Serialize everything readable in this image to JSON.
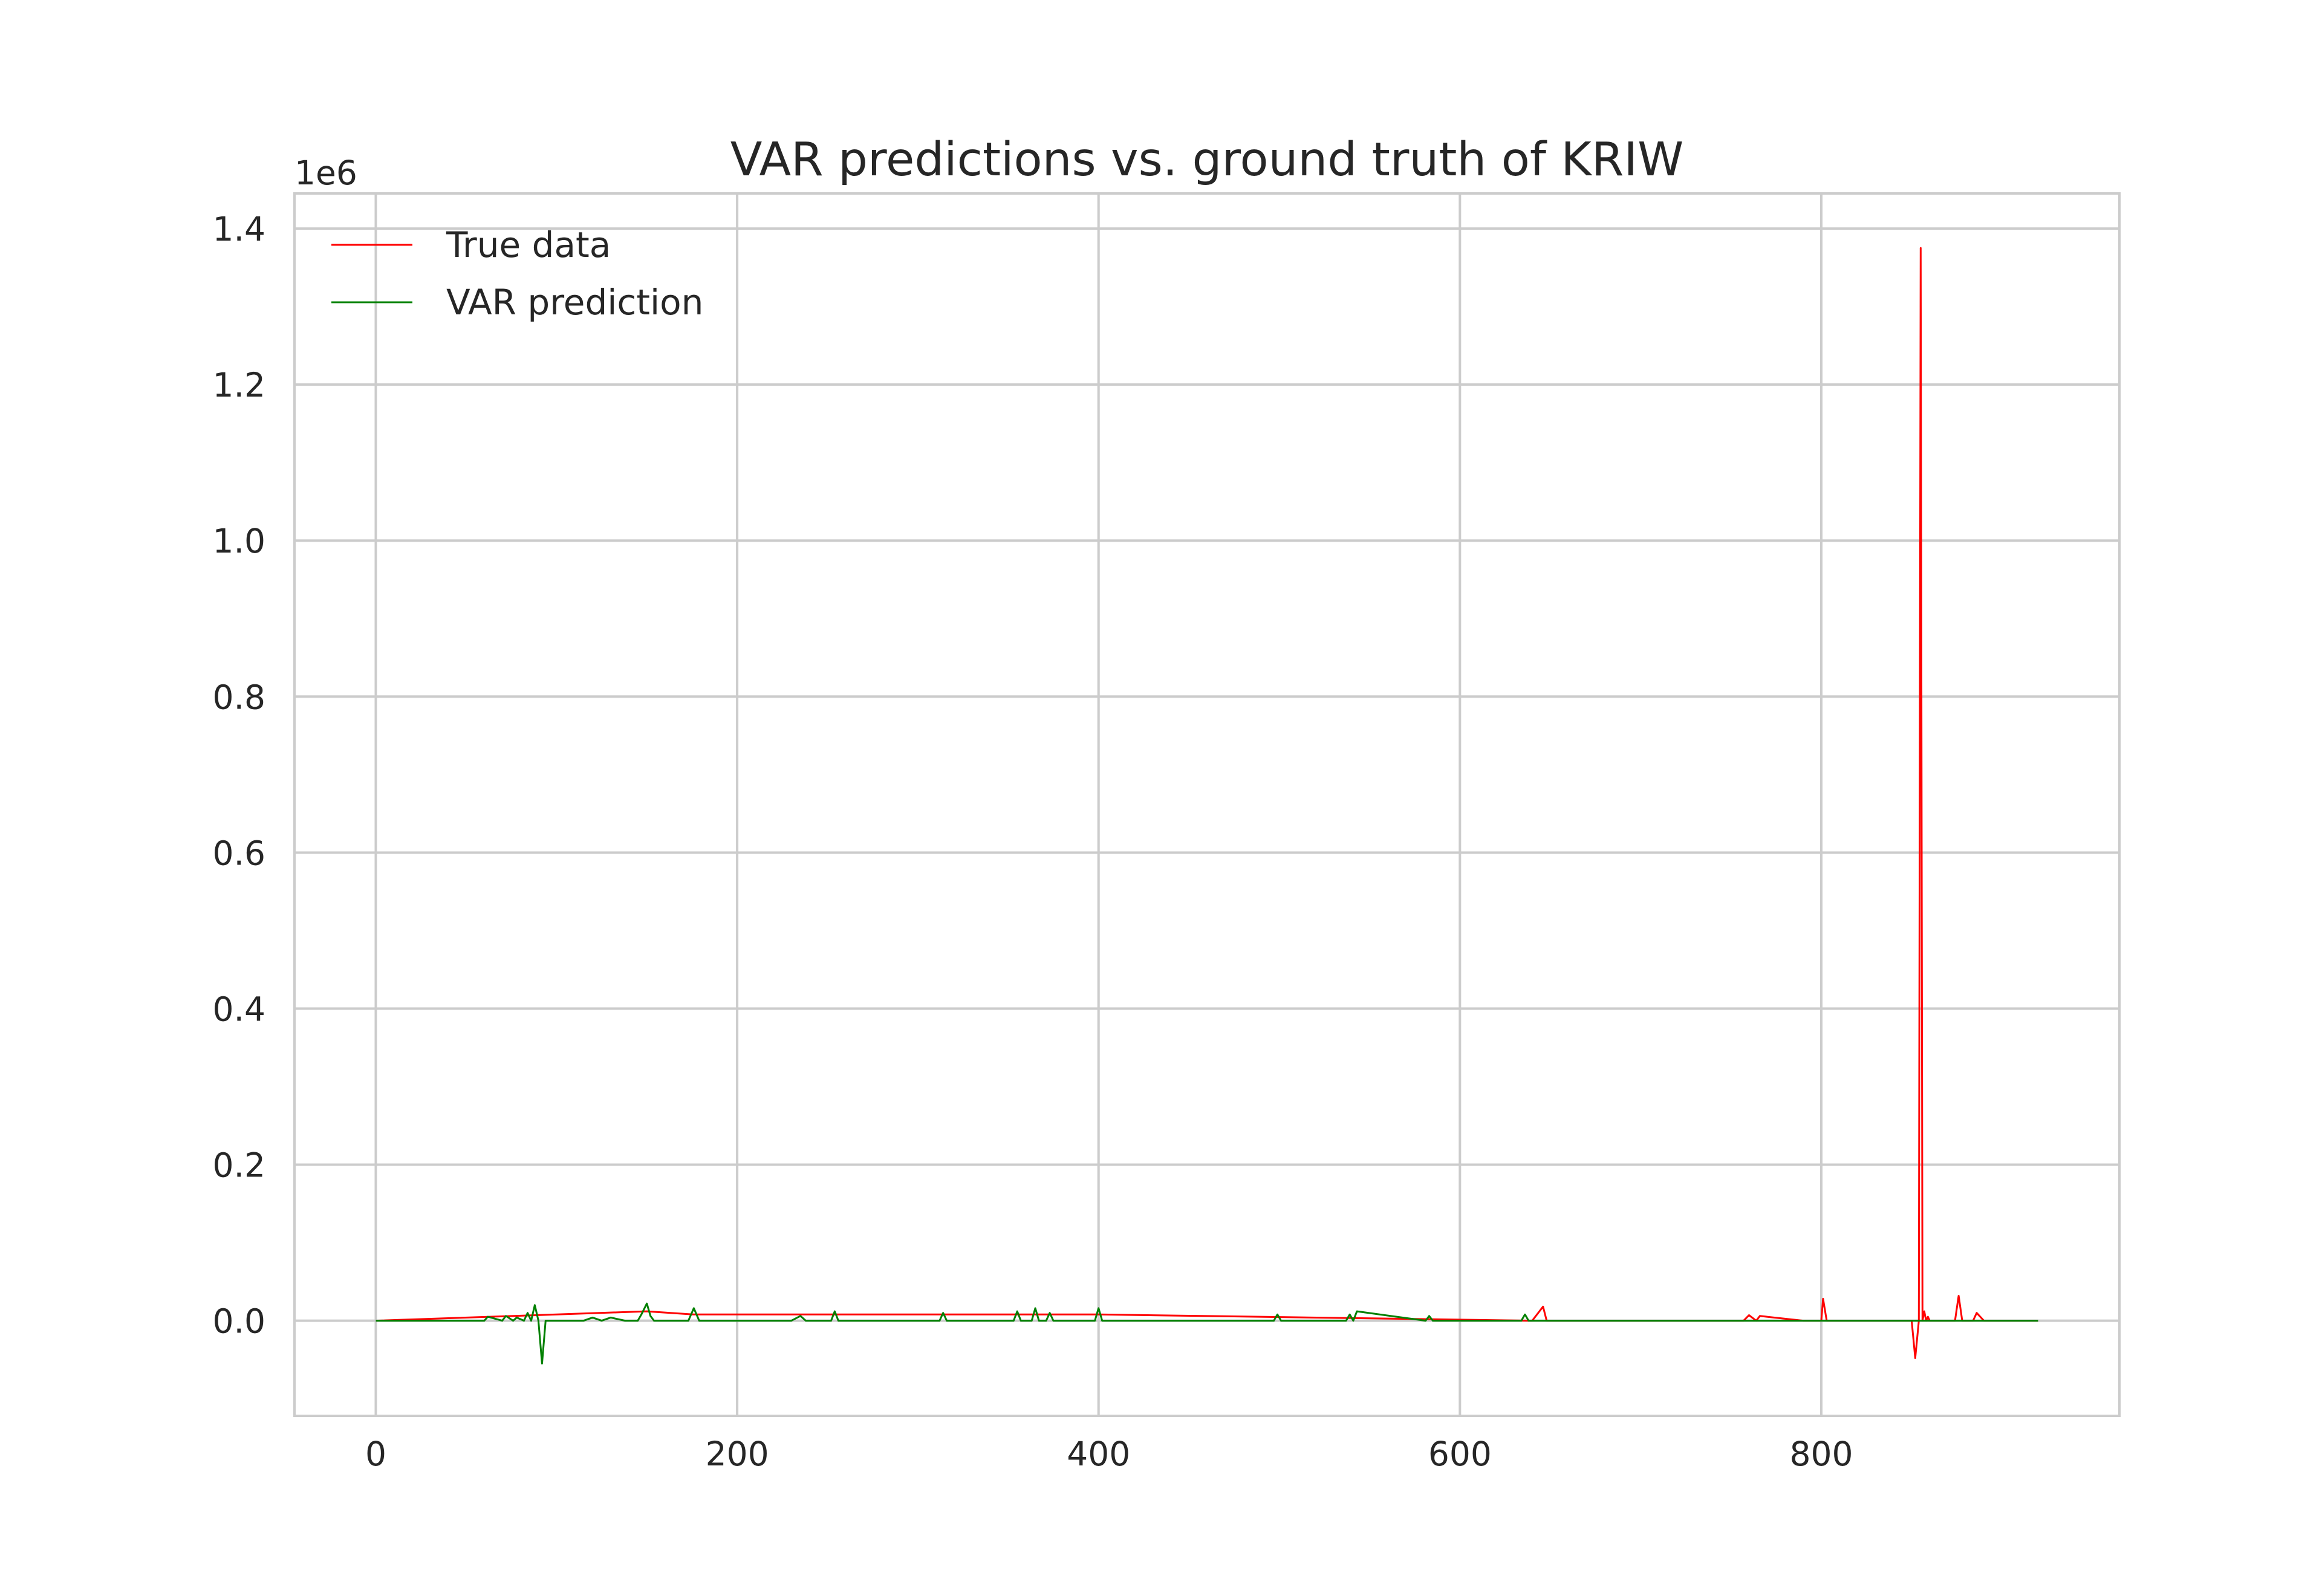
{
  "chart_data": {
    "type": "line",
    "title": "VAR predictions vs. ground truth of KRIW",
    "xlabel": "",
    "ylabel": "",
    "y_offset_label": "1e6",
    "xlim": [
      -45,
      965
    ],
    "ylim": [
      -0.122,
      1.445
    ],
    "x_ticks": [
      0,
      200,
      400,
      600,
      800
    ],
    "x_tick_labels": [
      "0",
      "200",
      "400",
      "600",
      "800"
    ],
    "y_ticks": [
      0.0,
      0.2,
      0.4,
      0.6,
      0.8,
      1.0,
      1.2,
      1.4
    ],
    "y_tick_labels": [
      "0.0",
      "0.2",
      "0.4",
      "0.6",
      "0.8",
      "1.0",
      "1.2",
      "1.4"
    ],
    "grid": true,
    "legend_position": "top-left",
    "series": [
      {
        "name": "True data",
        "color": "#ff0000",
        "x": [
          0,
          150,
          176,
          400,
          640,
          646,
          648,
          700,
          757,
          760,
          764,
          766,
          790,
          800,
          801,
          803,
          805,
          850,
          852,
          854,
          855,
          856,
          857,
          858,
          859,
          860,
          862,
          874,
          876,
          878,
          880,
          884,
          886,
          890,
          920
        ],
        "y": [
          0.0,
          0.012,
          0.008,
          0.008,
          0.0,
          0.018,
          0.0,
          0.0,
          0.0,
          0.007,
          0.0,
          0.006,
          0.0,
          0.0,
          0.028,
          0.0,
          0.0,
          0.0,
          -0.048,
          0.0,
          1.375,
          0.0,
          0.012,
          0.0,
          0.005,
          0.0,
          0.0,
          0.0,
          0.032,
          0.0,
          0.0,
          0.0,
          0.01,
          0.0,
          0.0
        ]
      },
      {
        "name": "VAR prediction",
        "color": "#008000",
        "x": [
          0,
          40,
          60,
          62,
          70,
          72,
          76,
          78,
          82,
          84,
          86,
          88,
          90,
          92,
          94,
          115,
          120,
          125,
          130,
          138,
          145,
          147,
          150,
          152,
          154,
          173,
          176,
          179,
          230,
          235,
          238,
          252,
          254,
          256,
          312,
          314,
          316,
          353,
          355,
          357,
          363,
          365,
          367,
          371,
          373,
          375,
          398,
          400,
          402,
          497,
          499,
          501,
          537,
          539,
          541,
          543,
          581,
          583,
          585,
          634,
          636,
          638,
          920
        ],
        "y": [
          0.0,
          0.0,
          0.0,
          0.005,
          0.0,
          0.006,
          0.0,
          0.004,
          0.0,
          0.01,
          0.0,
          0.02,
          0.0,
          -0.055,
          0.0,
          0.0,
          0.004,
          0.0,
          0.004,
          0.0,
          0.0,
          0.008,
          0.022,
          0.006,
          0.0,
          0.0,
          0.016,
          0.0,
          0.0,
          0.006,
          0.0,
          0.0,
          0.012,
          0.0,
          0.0,
          0.01,
          0.0,
          0.0,
          0.012,
          0.0,
          0.0,
          0.016,
          0.0,
          0.0,
          0.01,
          0.0,
          0.0,
          0.016,
          0.0,
          0.0,
          0.008,
          0.0,
          0.0,
          0.008,
          0.0,
          0.012,
          0.0,
          0.006,
          0.0,
          0.0,
          0.008,
          0.0,
          0.0
        ]
      }
    ]
  }
}
